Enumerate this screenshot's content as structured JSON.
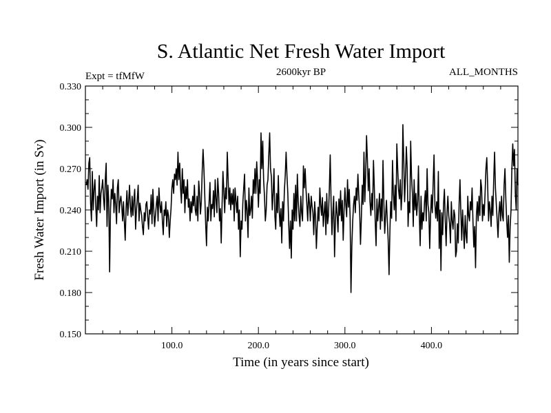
{
  "chart_data": {
    "type": "line",
    "title": "S. Atlantic Net Fresh Water Import",
    "subtitle_left": "Expt = tfMfW",
    "subtitle_center": "2600kyr BP",
    "subtitle_right": "ALL_MONTHS",
    "xlabel": "Time (in years since start)",
    "ylabel": "Fresh Water Import (in Sv)",
    "xlim": [
      0,
      500
    ],
    "ylim": [
      0.15,
      0.33
    ],
    "xticks": [
      100,
      200,
      300,
      400
    ],
    "xtick_labels": [
      "100.0",
      "200.0",
      "300.0",
      "400.0"
    ],
    "yticks": [
      0.15,
      0.18,
      0.21,
      0.24,
      0.27,
      0.3,
      0.33
    ],
    "ytick_labels": [
      "0.150",
      "0.180",
      "0.210",
      "0.240",
      "0.270",
      "0.300",
      "0.330"
    ],
    "series": [
      {
        "name": "Net Fresh Water Import",
        "x_start": 1,
        "x_step": 1,
        "values": [
          0.258,
          0.262,
          0.255,
          0.274,
          0.278,
          0.245,
          0.232,
          0.268,
          0.24,
          0.255,
          0.262,
          0.243,
          0.228,
          0.25,
          0.24,
          0.265,
          0.238,
          0.252,
          0.256,
          0.262,
          0.248,
          0.24,
          0.262,
          0.274,
          0.228,
          0.258,
          0.246,
          0.195,
          0.24,
          0.255,
          0.248,
          0.262,
          0.238,
          0.252,
          0.244,
          0.23,
          0.256,
          0.262,
          0.238,
          0.246,
          0.25,
          0.243,
          0.232,
          0.246,
          0.232,
          0.218,
          0.241,
          0.254,
          0.236,
          0.246,
          0.258,
          0.242,
          0.235,
          0.25,
          0.236,
          0.247,
          0.255,
          0.226,
          0.24,
          0.248,
          0.258,
          0.232,
          0.245,
          0.24,
          0.236,
          0.228,
          0.222,
          0.238,
          0.232,
          0.244,
          0.246,
          0.235,
          0.226,
          0.24,
          0.237,
          0.251,
          0.23,
          0.255,
          0.241,
          0.228,
          0.236,
          0.244,
          0.25,
          0.232,
          0.256,
          0.244,
          0.238,
          0.246,
          0.232,
          0.222,
          0.24,
          0.236,
          0.246,
          0.228,
          0.24,
          0.236,
          0.22,
          0.232,
          0.241,
          0.256,
          0.262,
          0.252,
          0.266,
          0.262,
          0.27,
          0.258,
          0.282,
          0.262,
          0.274,
          0.256,
          0.245,
          0.27,
          0.252,
          0.262,
          0.238,
          0.257,
          0.248,
          0.262,
          0.242,
          0.248,
          0.232,
          0.246,
          0.238,
          0.25,
          0.243,
          0.258,
          0.24,
          0.236,
          0.25,
          0.232,
          0.261,
          0.252,
          0.237,
          0.246,
          0.268,
          0.284,
          0.27,
          0.25,
          0.23,
          0.214,
          0.242,
          0.232,
          0.246,
          0.26,
          0.232,
          0.244,
          0.241,
          0.254,
          0.235,
          0.262,
          0.248,
          0.238,
          0.263,
          0.252,
          0.232,
          0.241,
          0.216,
          0.244,
          0.268,
          0.254,
          0.238,
          0.256,
          0.248,
          0.282,
          0.262,
          0.244,
          0.256,
          0.24,
          0.252,
          0.244,
          0.255,
          0.232,
          0.256,
          0.247,
          0.238,
          0.25,
          0.226,
          0.24,
          0.206,
          0.232,
          0.226,
          0.245,
          0.256,
          0.266,
          0.232,
          0.247,
          0.24,
          0.22,
          0.256,
          0.236,
          0.24,
          0.25,
          0.234,
          0.262,
          0.252,
          0.27,
          0.252,
          0.275,
          0.262,
          0.242,
          0.262,
          0.252,
          0.296,
          0.27,
          0.29,
          0.262,
          0.25,
          0.232,
          0.24,
          0.258,
          0.262,
          0.28,
          0.296,
          0.27,
          0.264,
          0.24,
          0.252,
          0.27,
          0.236,
          0.226,
          0.252,
          0.238,
          0.265,
          0.24,
          0.228,
          0.241,
          0.216,
          0.246,
          0.232,
          0.254,
          0.265,
          0.282,
          0.265,
          0.252,
          0.23,
          0.212,
          0.232,
          0.205,
          0.24,
          0.226,
          0.252,
          0.232,
          0.258,
          0.232,
          0.266,
          0.246,
          0.236,
          0.228,
          0.25,
          0.238,
          0.232,
          0.272,
          0.256,
          0.27,
          0.255,
          0.244,
          0.232,
          0.252,
          0.245,
          0.232,
          0.25,
          0.243,
          0.238,
          0.222,
          0.246,
          0.235,
          0.212,
          0.228,
          0.242,
          0.232,
          0.256,
          0.244,
          0.236,
          0.249,
          0.228,
          0.238,
          0.246,
          0.222,
          0.252,
          0.23,
          0.236,
          0.256,
          0.28,
          0.246,
          0.222,
          0.238,
          0.25,
          0.206,
          0.232,
          0.246,
          0.236,
          0.224,
          0.248,
          0.236,
          0.254,
          0.232,
          0.247,
          0.218,
          0.24,
          0.256,
          0.244,
          0.235,
          0.262,
          0.242,
          0.255,
          0.235,
          0.18,
          0.214,
          0.232,
          0.244,
          0.25,
          0.238,
          0.256,
          0.247,
          0.266,
          0.251,
          0.24,
          0.215,
          0.234,
          0.258,
          0.244,
          0.282,
          0.246,
          0.266,
          0.294,
          0.276,
          0.254,
          0.27,
          0.246,
          0.236,
          0.252,
          0.24,
          0.276,
          0.256,
          0.232,
          0.214,
          0.248,
          0.232,
          0.242,
          0.252,
          0.226,
          0.248,
          0.232,
          0.276,
          0.246,
          0.223,
          0.236,
          0.247,
          0.232,
          0.218,
          0.193,
          0.225,
          0.246,
          0.234,
          0.276,
          0.252,
          0.24,
          0.258,
          0.232,
          0.288,
          0.27,
          0.255,
          0.248,
          0.262,
          0.24,
          0.252,
          0.302,
          0.276,
          0.246,
          0.264,
          0.286,
          0.27,
          0.228,
          0.246,
          0.238,
          0.29,
          0.264,
          0.252,
          0.228,
          0.262,
          0.24,
          0.252,
          0.236,
          0.246,
          0.272,
          0.236,
          0.214,
          0.25,
          0.226,
          0.238,
          0.232,
          0.246,
          0.254,
          0.232,
          0.27,
          0.244,
          0.238,
          0.212,
          0.236,
          0.251,
          0.238,
          0.26,
          0.28,
          0.244,
          0.234,
          0.246,
          0.232,
          0.268,
          0.212,
          0.24,
          0.196,
          0.238,
          0.222,
          0.244,
          0.255,
          0.232,
          0.214,
          0.238,
          0.25,
          0.236,
          0.23,
          0.216,
          0.246,
          0.232,
          0.226,
          0.24,
          0.236,
          0.206,
          0.21,
          0.23,
          0.216,
          0.244,
          0.262,
          0.238,
          0.218,
          0.24,
          0.226,
          0.212,
          0.236,
          0.222,
          0.216,
          0.25,
          0.236,
          0.232,
          0.246,
          0.24,
          0.256,
          0.232,
          0.213,
          0.228,
          0.198,
          0.236,
          0.246,
          0.232,
          0.25,
          0.236,
          0.262,
          0.256,
          0.232,
          0.244,
          0.236,
          0.252,
          0.27,
          0.278,
          0.258,
          0.232,
          0.246,
          0.24,
          0.228,
          0.25,
          0.236,
          0.262,
          0.282,
          0.256,
          0.244,
          0.232,
          0.22,
          0.238,
          0.246,
          0.232,
          0.25,
          0.236,
          0.232,
          0.258,
          0.27,
          0.248,
          0.232,
          0.22,
          0.236,
          0.202,
          0.228,
          0.24,
          0.27,
          0.288,
          0.272,
          0.284,
          0.252,
          0.24,
          0.27,
          0.258
        ]
      }
    ]
  }
}
